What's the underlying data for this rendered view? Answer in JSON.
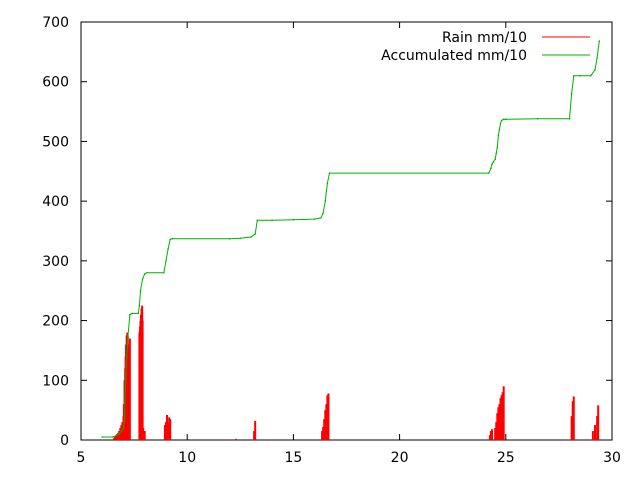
{
  "chart_data": {
    "type": "line",
    "title": "",
    "xlabel": "",
    "ylabel": "",
    "xlim": [
      5,
      30
    ],
    "ylim": [
      0,
      700
    ],
    "xticks": [
      5,
      10,
      15,
      20,
      25,
      30
    ],
    "yticks": [
      0,
      100,
      200,
      300,
      400,
      500,
      600,
      700
    ],
    "grid": false,
    "legend_position": "top-right",
    "series": [
      {
        "name": "Rain mm/10",
        "style": "impulses",
        "color": "#ff0000",
        "x": [
          6.55,
          6.6,
          6.65,
          6.7,
          6.75,
          6.8,
          6.85,
          6.9,
          6.95,
          7.0,
          7.02,
          7.05,
          7.08,
          7.1,
          7.12,
          7.15,
          7.18,
          7.2,
          7.22,
          7.25,
          7.28,
          7.3,
          7.75,
          7.78,
          7.8,
          7.82,
          7.85,
          7.88,
          7.9,
          7.93,
          8.0,
          8.95,
          9.0,
          9.05,
          9.1,
          9.15,
          9.2,
          12.3,
          13.15,
          13.2,
          16.35,
          16.4,
          16.45,
          16.5,
          16.55,
          16.6,
          16.65,
          24.25,
          24.3,
          24.35,
          24.5,
          24.55,
          24.6,
          24.65,
          24.7,
          24.75,
          24.8,
          24.85,
          24.9,
          28.1,
          28.15,
          28.2,
          29.1,
          29.2,
          29.3,
          29.35
        ],
        "values": [
          3,
          5,
          8,
          10,
          12,
          15,
          20,
          25,
          30,
          40,
          60,
          100,
          120,
          140,
          160,
          175,
          180,
          175,
          160,
          150,
          140,
          170,
          180,
          190,
          200,
          210,
          220,
          225,
          200,
          20,
          15,
          25,
          30,
          42,
          28,
          38,
          35,
          2,
          15,
          32,
          15,
          22,
          35,
          50,
          60,
          75,
          78,
          8,
          15,
          18,
          20,
          30,
          45,
          55,
          60,
          70,
          75,
          80,
          90,
          40,
          65,
          73,
          15,
          25,
          40,
          58
        ]
      },
      {
        "name": "Accumulated mm/10",
        "style": "line",
        "color": "#00b000",
        "x": [
          6.0,
          6.5,
          6.7,
          6.8,
          6.9,
          7.0,
          7.05,
          7.1,
          7.15,
          7.2,
          7.3,
          7.4,
          7.7,
          7.75,
          7.8,
          7.9,
          8.0,
          8.1,
          8.9,
          9.0,
          9.1,
          9.2,
          9.3,
          12.0,
          12.5,
          13.0,
          13.2,
          13.3,
          14.0,
          15.0,
          16.0,
          16.3,
          16.4,
          16.5,
          16.6,
          16.7,
          24.2,
          24.3,
          24.35,
          24.4,
          24.5,
          24.55,
          24.6,
          24.65,
          24.7,
          24.75,
          24.8,
          24.9,
          25.0,
          26.5,
          28.0,
          28.1,
          28.2,
          28.5,
          29.0,
          29.2,
          29.3,
          29.4
        ],
        "values": [
          5,
          5,
          8,
          10,
          15,
          20,
          40,
          100,
          140,
          170,
          210,
          212,
          212,
          225,
          250,
          270,
          278,
          280,
          280,
          300,
          320,
          336,
          337,
          337,
          338,
          340,
          345,
          368,
          368,
          369,
          370,
          372,
          380,
          400,
          430,
          447,
          447,
          455,
          462,
          465,
          470,
          480,
          490,
          510,
          520,
          530,
          535,
          537,
          537,
          538,
          538,
          580,
          610,
          610,
          610,
          620,
          640,
          668
        ]
      }
    ]
  }
}
